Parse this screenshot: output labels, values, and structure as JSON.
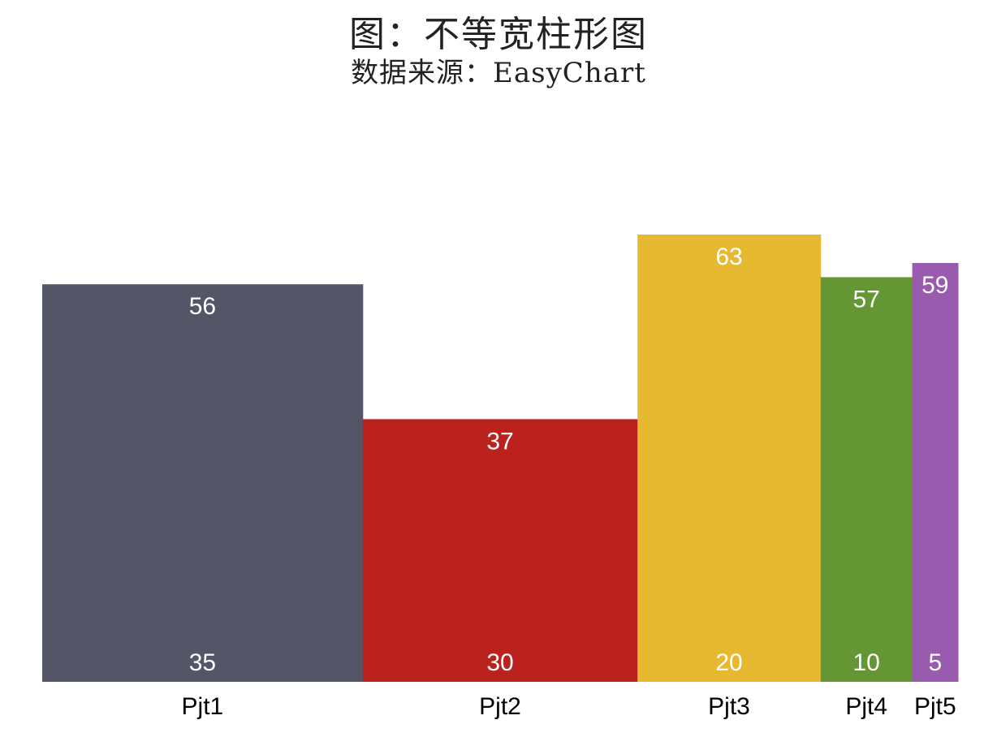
{
  "chart_data": {
    "type": "bar",
    "variant": "variable-width",
    "title": "图：不等宽柱形图",
    "subtitle": "数据来源：EasyChart",
    "categories": [
      "Pjt1",
      "Pjt2",
      "Pjt3",
      "Pjt4",
      "Pjt5"
    ],
    "widths": [
      35,
      30,
      20,
      10,
      5
    ],
    "values": [
      56,
      37,
      63,
      57,
      59
    ],
    "colors": [
      "#545668",
      "#BB221D",
      "#E6B931",
      "#649734",
      "#985BAD"
    ],
    "ylim": [
      0,
      63
    ],
    "grid": false,
    "legend": "none"
  }
}
